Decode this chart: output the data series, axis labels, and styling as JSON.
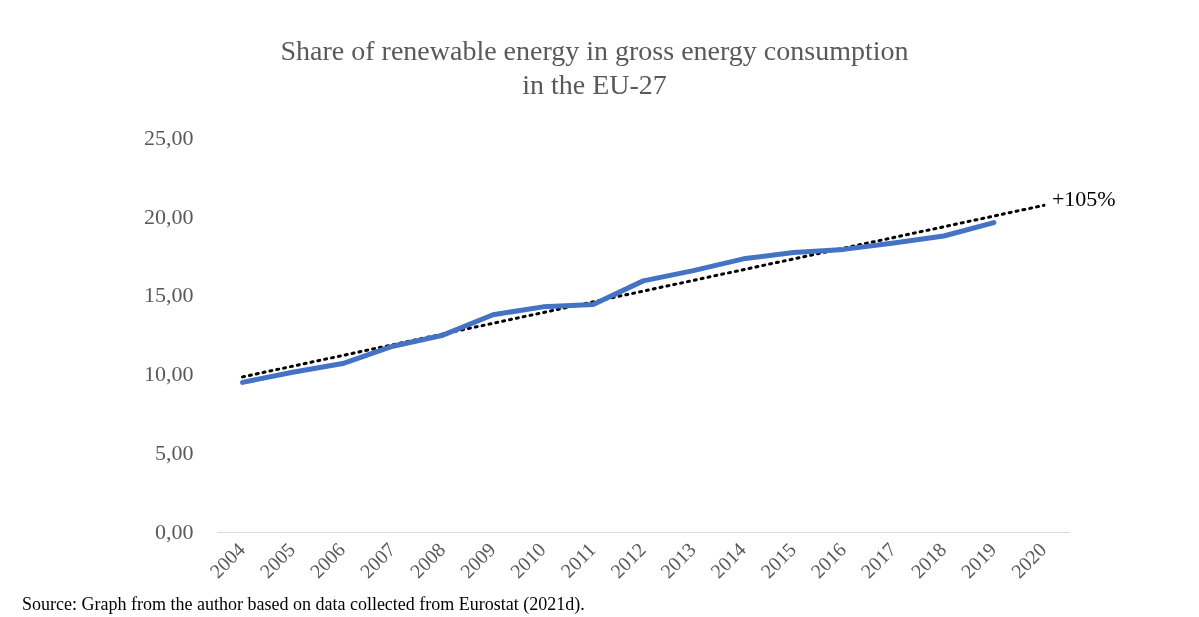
{
  "chart_data": {
    "type": "line",
    "title": "Share of renewable energy in gross energy consumption\nin the EU-27",
    "x": [
      2004,
      2005,
      2006,
      2007,
      2008,
      2009,
      2010,
      2011,
      2012,
      2013,
      2014,
      2015,
      2016,
      2017,
      2018,
      2019
    ],
    "series": [
      {
        "color": "#4472c4",
        "values": [
          9.55,
          10.2,
          10.75,
          11.85,
          12.55,
          13.85,
          14.35,
          14.5,
          16.0,
          16.65,
          17.4,
          17.8,
          18.0,
          18.4,
          18.85,
          19.7
        ]
      },
      {
        "color": "#000000",
        "line_style": "dotted",
        "x": [
          2004,
          2020
        ],
        "values": [
          9.9,
          20.8
        ]
      }
    ],
    "xlim": [
      2003.5,
      2020.5
    ],
    "xticks": [
      2004,
      2005,
      2006,
      2007,
      2008,
      2009,
      2010,
      2011,
      2012,
      2013,
      2014,
      2015,
      2016,
      2017,
      2018,
      2019,
      2020
    ],
    "ylim": [
      0,
      25
    ],
    "yticks": [
      {
        "value": 0,
        "label": "0,00"
      },
      {
        "value": 5,
        "label": "5,00"
      },
      {
        "value": 10,
        "label": "10,00"
      },
      {
        "value": 15,
        "label": "15,00"
      },
      {
        "value": 20,
        "label": "20,00"
      },
      {
        "value": 25,
        "label": "25,00"
      }
    ],
    "grid": false,
    "legend": false,
    "marker": "none",
    "annotations": [
      {
        "text": "+105%",
        "x": 2020,
        "y": 20.8
      },
      "Source: Graph from the author based on data collected from Eurostat (2021d)."
    ]
  }
}
